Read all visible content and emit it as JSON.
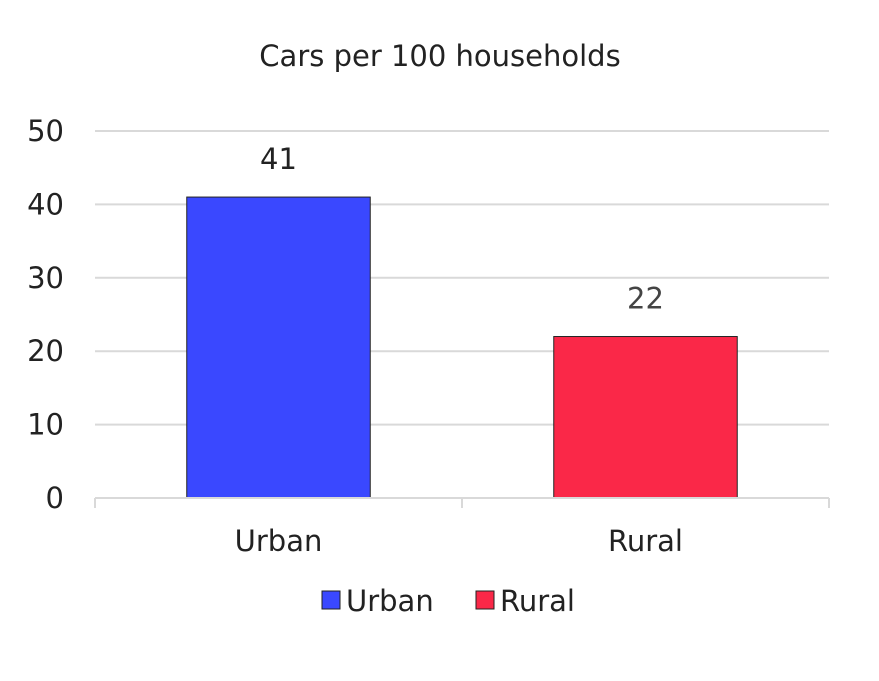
{
  "chart_data": {
    "type": "bar",
    "title": "Cars per 100 households",
    "xlabel": "",
    "ylabel": "",
    "categories": [
      "Urban",
      "Rural"
    ],
    "values": [
      41,
      22
    ],
    "data_labels": [
      "41",
      "22"
    ],
    "colors": [
      "#3a48ff",
      "#fa2848"
    ],
    "data_label_colors": [
      "#222222",
      "#444444"
    ],
    "ylim": [
      0,
      50
    ],
    "yticks": [
      "0",
      "10",
      "20",
      "30",
      "40",
      "50"
    ],
    "ytick_values": [
      0,
      10,
      20,
      30,
      40,
      50
    ],
    "grid": true,
    "legend_placement": "bottom",
    "legend": [
      {
        "label": "Urban",
        "color": "#3a48ff"
      },
      {
        "label": "Rural",
        "color": "#fa2848"
      }
    ]
  }
}
